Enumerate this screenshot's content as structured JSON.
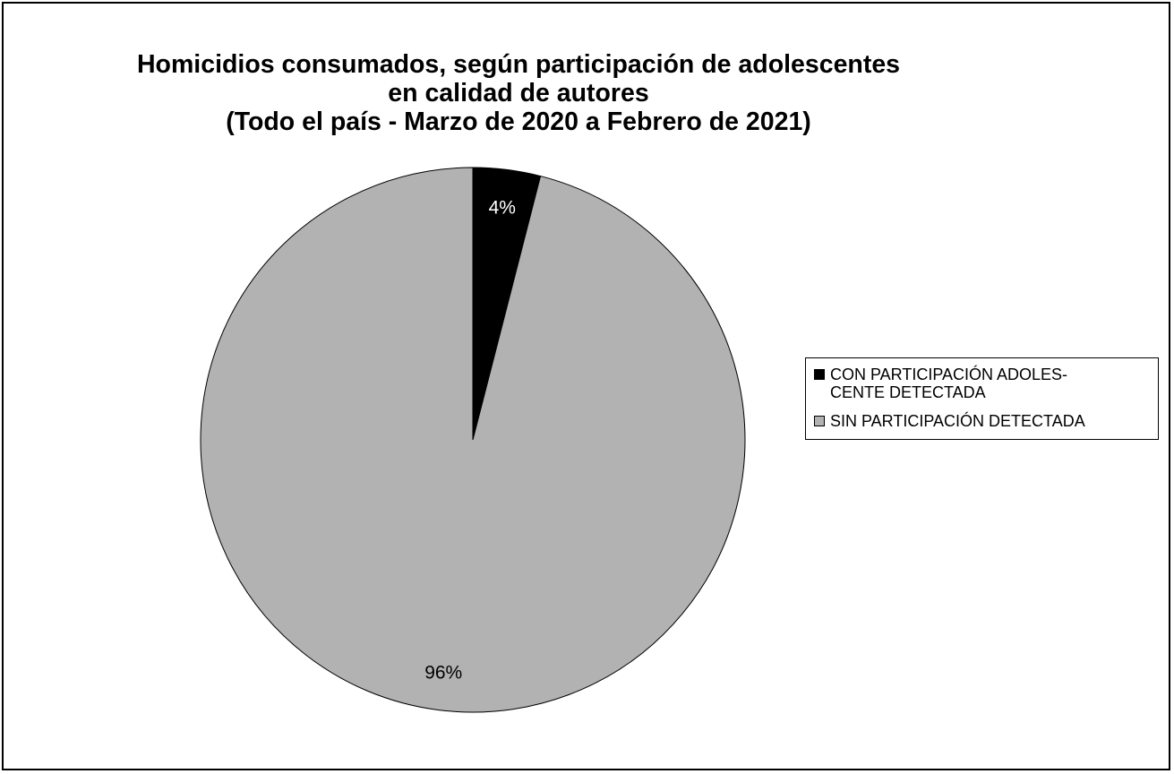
{
  "chart_data": {
    "type": "pie",
    "title": [
      "Homicidios consumados, según participación de adolescentes",
      "en calidad de autores",
      "(Todo el país - Marzo de 2020 a Febrero de 2021)"
    ],
    "slices": [
      {
        "label": "CON PARTICIPACIÓN ADOLES-\nCENTE DETECTADA",
        "value": 4,
        "data_label": "4%",
        "color": "#000000",
        "label_color": "#ffffff"
      },
      {
        "label": "SIN PARTICIPACIÓN DETECTADA",
        "value": 96,
        "data_label": "96%",
        "color": "#b2b2b2",
        "label_color": "#000000"
      }
    ],
    "legend_position": "right"
  }
}
